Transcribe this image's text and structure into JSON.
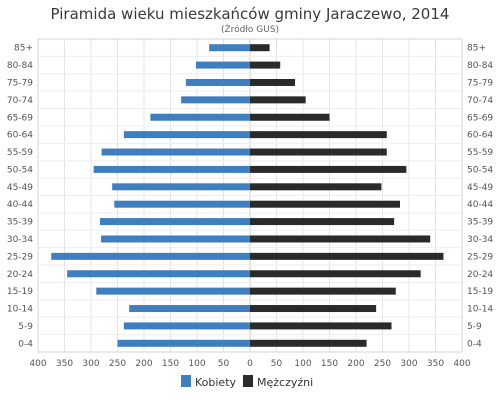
{
  "chart_data": {
    "type": "bar",
    "orientation": "horizontal",
    "subtype": "population-pyramid",
    "title": "Piramida wieku mieszkańców gminy Jaraczewo, 2014",
    "subtitle": "(Źródło  GUS)",
    "categories": [
      "85+",
      "80-84",
      "75-79",
      "70-74",
      "65-69",
      "60-64",
      "55-59",
      "50-54",
      "45-49",
      "40-44",
      "35-39",
      "30-34",
      "25-29",
      "20-24",
      "15-19",
      "10-14",
      "5-9",
      "0-4"
    ],
    "series": [
      {
        "name": "Kobiety",
        "color": "#3f7fbf",
        "values": [
          77,
          102,
          121,
          130,
          188,
          238,
          280,
          295,
          260,
          256,
          283,
          281,
          375,
          345,
          290,
          228,
          238,
          250
        ]
      },
      {
        "name": "Mężczyźni",
        "color": "#2a2a2a",
        "values": [
          37,
          57,
          85,
          105,
          150,
          258,
          258,
          295,
          248,
          283,
          272,
          340,
          365,
          322,
          275,
          238,
          267,
          220
        ]
      }
    ],
    "xlim": [
      -400,
      400
    ],
    "x_ticks": [
      "400",
      "350",
      "300",
      "250",
      "200",
      "150",
      "100",
      "50",
      "0",
      "50",
      "100",
      "150",
      "200",
      "250",
      "300",
      "350",
      "400"
    ],
    "grid": true,
    "legend_position": "bottom"
  }
}
